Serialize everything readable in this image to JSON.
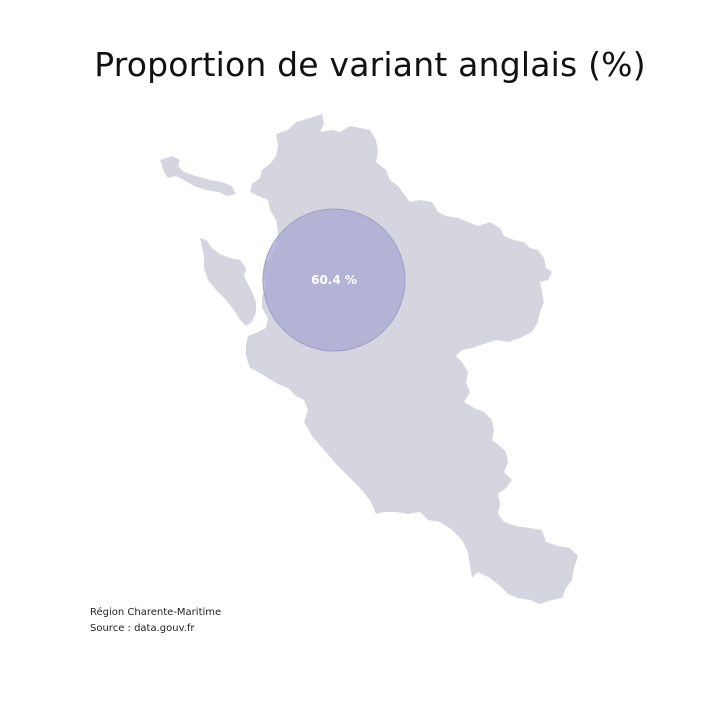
{
  "title": "Proportion de variant anglais (%)",
  "map": {
    "region_fill": "#d5d5df",
    "bubble_fill": "#a9a9d4",
    "bubble_stroke": "#9d9dcb",
    "bubble": {
      "label": "60.4 %",
      "value": 60.4,
      "unit": "%"
    }
  },
  "footnotes": {
    "region": "Région Charente-Maritime",
    "source": "Source : data.gouv.fr"
  }
}
